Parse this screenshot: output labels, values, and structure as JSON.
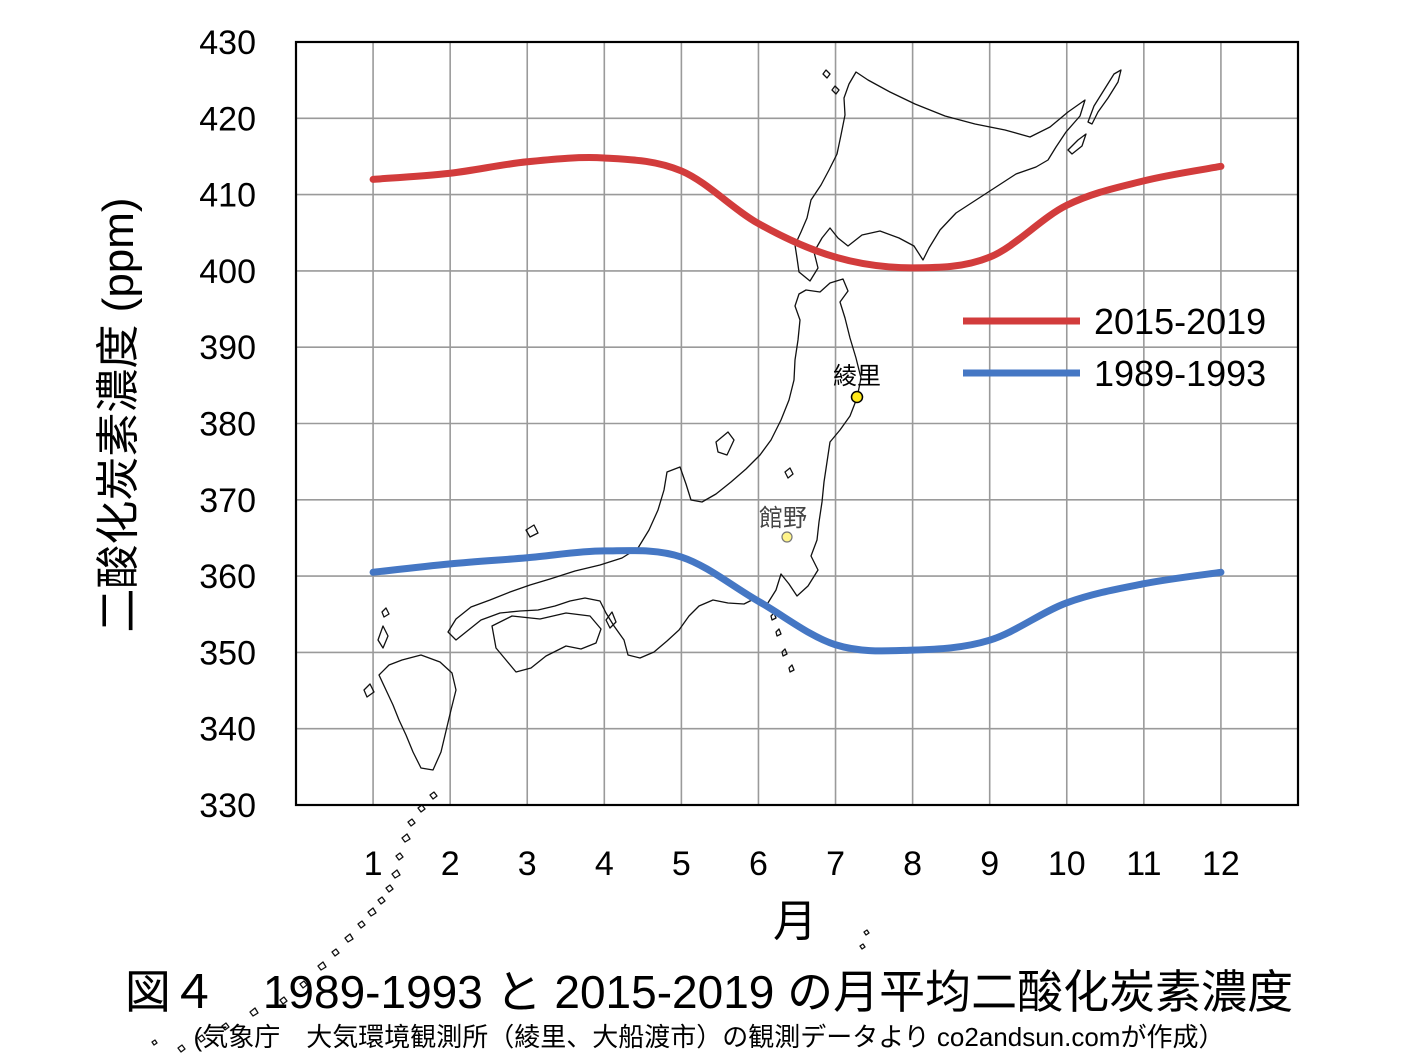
{
  "chart_data": {
    "type": "line",
    "title": "図４　1989-1993 と 2015-2019 の月平均二酸化炭素濃度",
    "note": "(気象庁　大気環境観測所（綾里、大船渡市）の観測データより co2andsun.comが作成）",
    "xlabel": "月",
    "ylabel": "二酸化炭素濃度 (ppm)",
    "x": [
      1,
      2,
      3,
      4,
      5,
      6,
      7,
      8,
      9,
      10,
      11,
      12
    ],
    "x_tick_labels": [
      "1",
      "2",
      "3",
      "4",
      "5",
      "6",
      "7",
      "8",
      "9",
      "10",
      "11",
      "12"
    ],
    "xlim": [
      0,
      13
    ],
    "ylim": [
      330,
      430
    ],
    "y_ticks": [
      430,
      420,
      410,
      400,
      390,
      380,
      370,
      360,
      350,
      340,
      330
    ],
    "y_tick_labels": [
      "430",
      "420",
      "410",
      "400",
      "390",
      "380",
      "370",
      "360",
      "350",
      "340",
      "330"
    ],
    "grid": true,
    "smooth": true,
    "legend_position": "right",
    "series": [
      {
        "name": "2015-2019",
        "color": "#d23c3c",
        "values": [
          412.0,
          412.8,
          414.3,
          414.8,
          413.1,
          406.2,
          401.8,
          400.4,
          401.8,
          408.6,
          411.8,
          413.7
        ]
      },
      {
        "name": "1989-1993",
        "color": "#4577c4",
        "values": [
          360.5,
          361.6,
          362.4,
          363.3,
          362.5,
          356.7,
          351.0,
          350.3,
          351.6,
          356.5,
          359.0,
          360.5
        ]
      }
    ],
    "annotations": [
      {
        "text": "綾里",
        "marker_color": "#ffe81a"
      },
      {
        "text": "館野",
        "marker_color": "#fff48a"
      }
    ]
  },
  "background": "japan-map-outline"
}
